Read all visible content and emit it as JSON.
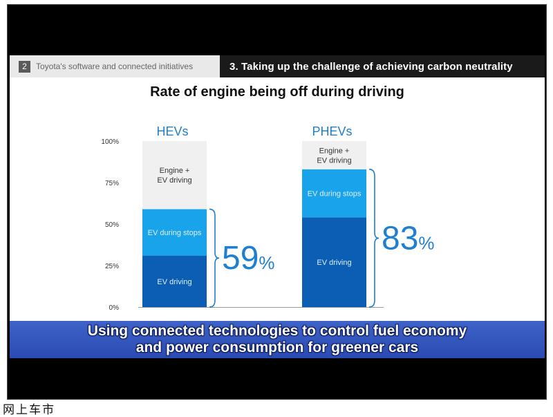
{
  "header": {
    "section_number": "2",
    "section_label": "Toyota's software and connected initiatives",
    "topic_label": "3. Taking up the challenge of achieving carbon neutrality"
  },
  "chart_data": {
    "type": "bar",
    "stacked": true,
    "title": "Rate of engine being off during driving",
    "categories": [
      "HEVs",
      "PHEVs"
    ],
    "yticks": [
      "100%",
      "75%",
      "50%",
      "25%",
      "0%"
    ],
    "ylim": [
      0,
      100
    ],
    "series": [
      {
        "name": "EV driving",
        "values": [
          31,
          54
        ],
        "color": "#0b5eb4"
      },
      {
        "name": "EV during stops",
        "values": [
          28,
          29
        ],
        "color": "#18a3ea"
      },
      {
        "name": "Engine + EV driving",
        "values": [
          41,
          17
        ],
        "color": "#f0f0f0"
      }
    ],
    "totals": [
      {
        "value": "59",
        "unit": "%"
      },
      {
        "value": "83",
        "unit": "%"
      }
    ],
    "segment_labels": [
      [
        "EV driving",
        "EV during stops",
        "Engine +\nEV driving"
      ],
      [
        "EV driving",
        "EV during stops",
        "Engine +\nEV driving"
      ]
    ]
  },
  "banner": {
    "text": "Using connected technologies to control fuel economy\nand power consumption for greener cars"
  },
  "watermark": {
    "text": "网上车市"
  }
}
